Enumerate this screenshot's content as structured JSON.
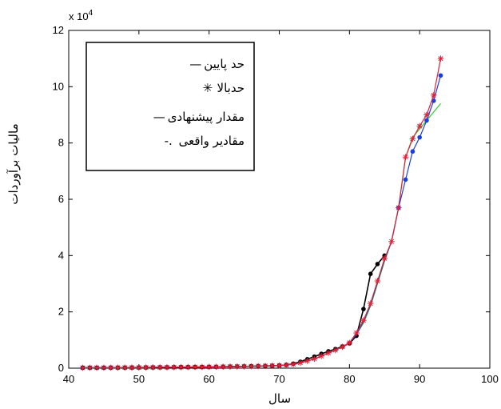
{
  "chart_data": {
    "type": "line",
    "xlabel": "سال",
    "ylabel": "مالیات برآوردات",
    "y_multiplier": "x 10",
    "y_multiplier_exp": "4",
    "xlim": [
      40,
      100
    ],
    "ylim": [
      0,
      120000
    ],
    "xticks": [
      40,
      50,
      60,
      70,
      80,
      90,
      100
    ],
    "yticks": [
      0,
      20000,
      40000,
      60000,
      80000,
      100000,
      120000
    ],
    "ytick_labels": [
      "0",
      "2",
      "4",
      "6",
      "8",
      "10",
      "12"
    ],
    "grid": false,
    "legend_position": "top-left",
    "series": [
      {
        "name": "حد پایین",
        "marker_label": "—",
        "color": "#2ecc2e",
        "marker": "none",
        "x": [
          42,
          43,
          44,
          45,
          46,
          47,
          48,
          49,
          50,
          51,
          52,
          53,
          54,
          55,
          56,
          57,
          58,
          59,
          60,
          61,
          62,
          63,
          64,
          65,
          66,
          67,
          68,
          69,
          70,
          71,
          72,
          73,
          74,
          75,
          76,
          77,
          78,
          79,
          80,
          81,
          82,
          83,
          84,
          85,
          86,
          87,
          88,
          89,
          90,
          91,
          92,
          93
        ],
        "values": [
          150,
          160,
          170,
          180,
          190,
          200,
          210,
          220,
          240,
          260,
          280,
          300,
          320,
          340,
          360,
          380,
          400,
          420,
          450,
          480,
          510,
          550,
          590,
          630,
          680,
          730,
          790,
          860,
          950,
          1100,
          1400,
          1900,
          2600,
          3300,
          4300,
          5400,
          6400,
          7600,
          9000,
          12000,
          16000,
          22000,
          30000,
          38000,
          45000,
          57000,
          75000,
          82000,
          85000,
          88000,
          91000,
          94000
        ]
      },
      {
        "name": "حدبالا",
        "marker_label": "✳",
        "color": "#e0203a",
        "marker": "star",
        "x": [
          42,
          43,
          44,
          45,
          46,
          47,
          48,
          49,
          50,
          51,
          52,
          53,
          54,
          55,
          56,
          57,
          58,
          59,
          60,
          61,
          62,
          63,
          64,
          65,
          66,
          67,
          68,
          69,
          70,
          71,
          72,
          73,
          74,
          75,
          76,
          77,
          78,
          79,
          80,
          81,
          82,
          83,
          84,
          85,
          86,
          87,
          88,
          89,
          90,
          91,
          92,
          93
        ],
        "values": [
          150,
          160,
          170,
          180,
          190,
          200,
          210,
          220,
          240,
          260,
          280,
          300,
          320,
          340,
          360,
          380,
          400,
          420,
          450,
          480,
          510,
          550,
          590,
          630,
          680,
          730,
          790,
          860,
          950,
          1100,
          1400,
          1900,
          2600,
          3300,
          4300,
          5400,
          6400,
          7600,
          9000,
          12500,
          17000,
          23000,
          31000,
          39000,
          45000,
          57000,
          75000,
          81500,
          86000,
          90000,
          97000,
          110000
        ]
      },
      {
        "name": "مقدار پیشنهادی",
        "marker_label": "—",
        "color": "#1a3fe0",
        "marker": "dot",
        "x": [
          42,
          43,
          44,
          45,
          46,
          47,
          48,
          49,
          50,
          51,
          52,
          53,
          54,
          55,
          56,
          57,
          58,
          59,
          60,
          61,
          62,
          63,
          64,
          65,
          66,
          67,
          68,
          69,
          70,
          71,
          72,
          73,
          74,
          75,
          76,
          77,
          78,
          79,
          80,
          81,
          82,
          83,
          84,
          85,
          86,
          87,
          88,
          89,
          90,
          91,
          92,
          93
        ],
        "values": [
          150,
          160,
          170,
          180,
          190,
          200,
          210,
          220,
          240,
          260,
          280,
          300,
          320,
          340,
          360,
          380,
          400,
          420,
          450,
          480,
          510,
          550,
          590,
          630,
          680,
          730,
          790,
          860,
          950,
          1100,
          1400,
          1900,
          2600,
          3300,
          4300,
          5400,
          6400,
          7600,
          9000,
          12000,
          16500,
          22500,
          30500,
          38500,
          45000,
          57000,
          67000,
          77000,
          82000,
          88000,
          95000,
          104000
        ]
      },
      {
        "name": "مقادیر واقعی",
        "marker_label": "-.",
        "color": "#000000",
        "marker": "dot",
        "x": [
          42,
          43,
          44,
          45,
          46,
          47,
          48,
          49,
          50,
          51,
          52,
          53,
          54,
          55,
          56,
          57,
          58,
          59,
          60,
          61,
          62,
          63,
          64,
          65,
          66,
          67,
          68,
          69,
          70,
          71,
          72,
          73,
          74,
          75,
          76,
          77,
          78,
          79,
          80,
          81,
          82,
          83,
          84,
          85
        ],
        "values": [
          150,
          160,
          170,
          180,
          190,
          200,
          210,
          220,
          240,
          260,
          280,
          300,
          320,
          340,
          360,
          380,
          400,
          420,
          450,
          480,
          510,
          550,
          590,
          630,
          680,
          730,
          790,
          860,
          950,
          1150,
          1600,
          2300,
          3200,
          4100,
          5100,
          6000,
          6800,
          7700,
          8800,
          11500,
          21000,
          33500,
          37000,
          40000
        ]
      }
    ]
  }
}
